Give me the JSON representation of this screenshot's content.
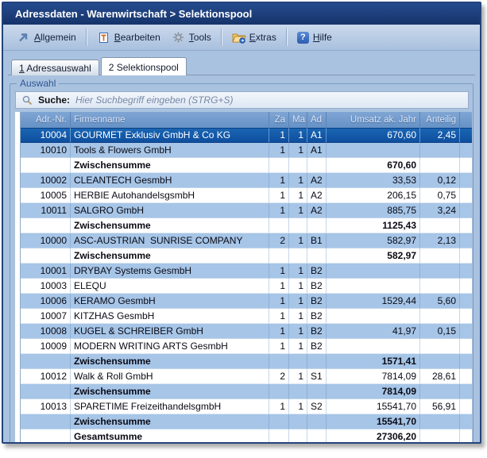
{
  "window": {
    "title": "Adressdaten - Warenwirtschaft > Selektionspool"
  },
  "toolbar": {
    "items": [
      {
        "label": "Allgemein",
        "accel": "A",
        "icon": "arrow-up-right-icon"
      },
      {
        "label": "Bearbeiten",
        "accel": "B",
        "icon": "edit-document-icon"
      },
      {
        "label": "Tools",
        "accel": "T",
        "icon": "gear-icon"
      },
      {
        "label": "Extras",
        "accel": "E",
        "icon": "folder-icon"
      },
      {
        "label": "Hilfe",
        "accel": "H",
        "icon": "help-icon"
      }
    ]
  },
  "tabs": [
    {
      "label": "1 Adressauswahl",
      "accel": "1",
      "active": false
    },
    {
      "label": "2 Selektionspool",
      "accel": "",
      "active": true
    }
  ],
  "group": {
    "label": "Auswahl"
  },
  "search": {
    "label": "Suche:",
    "placeholder": "Hier Suchbegriff eingeben (STRG+S)",
    "icon": "magnifier-icon"
  },
  "table": {
    "columns": [
      {
        "key": "adr",
        "label": "Adr.-Nr."
      },
      {
        "key": "firma",
        "label": "Firmenname"
      },
      {
        "key": "za",
        "label": "Za"
      },
      {
        "key": "ma",
        "label": "Ma"
      },
      {
        "key": "ad",
        "label": "Ad"
      },
      {
        "key": "umsatz",
        "label": "Umsatz ak. Jahr"
      },
      {
        "key": "anteilig",
        "label": "Anteilig"
      },
      {
        "key": "filler",
        "label": ""
      }
    ],
    "rows": [
      {
        "type": "data",
        "selected": true,
        "adr": "10004",
        "firma": "GOURMET Exklusiv GmbH & Co KG",
        "za": "1",
        "ma": "1",
        "ad": "A1",
        "umsatz": "670,60",
        "anteilig": "2,45"
      },
      {
        "type": "data",
        "adr": "10010",
        "firma": "Tools & Flowers GmbH",
        "za": "1",
        "ma": "1",
        "ad": "A1",
        "umsatz": "",
        "anteilig": ""
      },
      {
        "type": "sum",
        "firma": "Zwischensumme",
        "umsatz": "670,60"
      },
      {
        "type": "data",
        "adr": "10002",
        "firma": "CLEANTECH GesmbH",
        "za": "1",
        "ma": "1",
        "ad": "A2",
        "umsatz": "33,53",
        "anteilig": "0,12"
      },
      {
        "type": "data",
        "adr": "10005",
        "firma": "HERBIE AutohandelsgsmbH",
        "za": "1",
        "ma": "1",
        "ad": "A2",
        "umsatz": "206,15",
        "anteilig": "0,75"
      },
      {
        "type": "data",
        "adr": "10011",
        "firma": "SALGRO GmbH",
        "za": "1",
        "ma": "1",
        "ad": "A2",
        "umsatz": "885,75",
        "anteilig": "3,24"
      },
      {
        "type": "sum",
        "firma": "Zwischensumme",
        "umsatz": "1125,43"
      },
      {
        "type": "data",
        "adr": "10000",
        "firma": "ASC-AUSTRIAN  SUNRISE COMPANY",
        "za": "2",
        "ma": "1",
        "ad": "B1",
        "umsatz": "582,97",
        "anteilig": "2,13"
      },
      {
        "type": "sum",
        "firma": "Zwischensumme",
        "umsatz": "582,97"
      },
      {
        "type": "data",
        "adr": "10001",
        "firma": "DRYBAY Systems GesmbH",
        "za": "1",
        "ma": "1",
        "ad": "B2",
        "umsatz": "",
        "anteilig": ""
      },
      {
        "type": "data",
        "adr": "10003",
        "firma": "ELEQU",
        "za": "1",
        "ma": "1",
        "ad": "B2",
        "umsatz": "",
        "anteilig": ""
      },
      {
        "type": "data",
        "adr": "10006",
        "firma": "KERAMO GesmbH",
        "za": "1",
        "ma": "1",
        "ad": "B2",
        "umsatz": "1529,44",
        "anteilig": "5,60"
      },
      {
        "type": "data",
        "adr": "10007",
        "firma": "KITZHAS GesmbH",
        "za": "1",
        "ma": "1",
        "ad": "B2",
        "umsatz": "",
        "anteilig": ""
      },
      {
        "type": "data",
        "adr": "10008",
        "firma": "KUGEL & SCHREIBER GmbH",
        "za": "1",
        "ma": "1",
        "ad": "B2",
        "umsatz": "41,97",
        "anteilig": "0,15"
      },
      {
        "type": "data",
        "adr": "10009",
        "firma": "MODERN WRITING ARTS GesmbH",
        "za": "1",
        "ma": "1",
        "ad": "B2",
        "umsatz": "",
        "anteilig": ""
      },
      {
        "type": "sum",
        "firma": "Zwischensumme",
        "umsatz": "1571,41"
      },
      {
        "type": "data",
        "adr": "10012",
        "firma": "Walk & Roll GmbH",
        "za": "2",
        "ma": "1",
        "ad": "S1",
        "umsatz": "7814,09",
        "anteilig": "28,61"
      },
      {
        "type": "sum",
        "firma": "Zwischensumme",
        "umsatz": "7814,09"
      },
      {
        "type": "data",
        "adr": "10013",
        "firma": "SPARETIME FreizeithandelsgmbH",
        "za": "1",
        "ma": "1",
        "ad": "S2",
        "umsatz": "15541,70",
        "anteilig": "56,91"
      },
      {
        "type": "sum",
        "firma": "Zwischensumme",
        "umsatz": "15541,70"
      },
      {
        "type": "sum",
        "firma": "Gesamtsumme",
        "umsatz": "27306,20"
      },
      {
        "type": "empty"
      },
      {
        "type": "empty"
      }
    ]
  },
  "colors": {
    "titlebar_bg": "#1b3c78",
    "titlebar_text": "#ffffff",
    "toolbar_bg": "#bdd0e8",
    "content_bg": "#a9c2df",
    "header_bg": "#7099cb",
    "header_text": "#d9e4f4",
    "row_alt_bg": "#a6c5e7",
    "row_bg": "#ffffff",
    "selected_row_bg": "#1156a4",
    "selected_row_text": "#ffffff",
    "group_label_text": "#2f5795",
    "placeholder_text": "#7787a5"
  }
}
